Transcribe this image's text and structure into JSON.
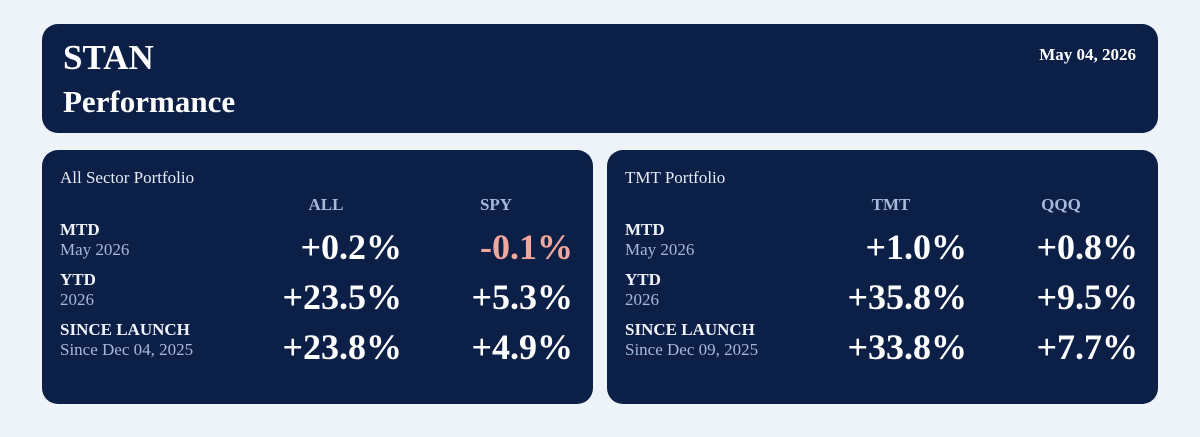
{
  "header": {
    "title": "STAN",
    "subtitle": "Performance",
    "date": "May 04, 2026"
  },
  "panels": [
    {
      "title": "All Sector Portfolio",
      "columns": [
        "ALL",
        "SPY"
      ],
      "rows": [
        {
          "label": "MTD",
          "sub": "May 2026",
          "values": [
            "+0.2%",
            "-0.1%"
          ]
        },
        {
          "label": "YTD",
          "sub": "2026",
          "values": [
            "+23.5%",
            "+5.3%"
          ]
        },
        {
          "label": "SINCE LAUNCH",
          "sub": "Since Dec 04, 2025",
          "values": [
            "+23.8%",
            "+4.9%"
          ]
        }
      ]
    },
    {
      "title": "TMT Portfolio",
      "columns": [
        "TMT",
        "QQQ"
      ],
      "rows": [
        {
          "label": "MTD",
          "sub": "May 2026",
          "values": [
            "+1.0%",
            "+0.8%"
          ]
        },
        {
          "label": "YTD",
          "sub": "2026",
          "values": [
            "+35.8%",
            "+9.5%"
          ]
        },
        {
          "label": "SINCE LAUNCH",
          "sub": "Since Dec 09, 2025",
          "values": [
            "+33.8%",
            "+7.7%"
          ]
        }
      ]
    }
  ]
}
